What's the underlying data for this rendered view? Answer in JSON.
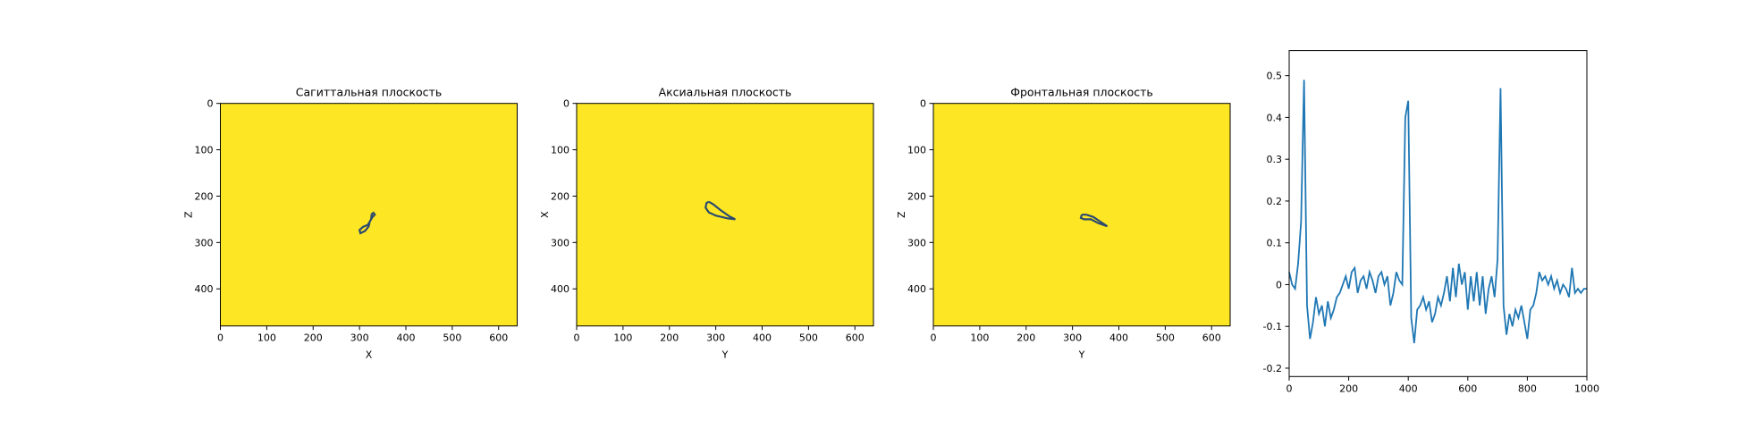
{
  "chart_data": [
    {
      "type": "contour",
      "title": "Сагиттальная плоскость",
      "x_label": "X",
      "y_label": "Z",
      "background": "#fde725",
      "xlim": [
        0,
        640
      ],
      "ylim": [
        480,
        0
      ],
      "xticks": [
        0,
        100,
        200,
        300,
        400,
        500,
        600
      ],
      "yticks": [
        0,
        100,
        200,
        300,
        400
      ],
      "series": [
        {
          "color": "#2c4a6e",
          "x": [
            325,
            330,
            333,
            328,
            322,
            320,
            312,
            302,
            300,
            308,
            318,
            325,
            326,
            325
          ],
          "y": [
            240,
            236,
            240,
            245,
            255,
            265,
            275,
            280,
            273,
            266,
            262,
            250,
            242,
            240
          ]
        }
      ]
    },
    {
      "type": "contour",
      "title": "Аксиальная плоскость",
      "x_label": "Y",
      "y_label": "X",
      "background": "#fde725",
      "xlim": [
        0,
        640
      ],
      "ylim": [
        480,
        0
      ],
      "xticks": [
        0,
        100,
        200,
        300,
        400,
        500,
        600
      ],
      "yticks": [
        0,
        100,
        200,
        300,
        400
      ],
      "series": [
        {
          "color": "#2c4a6e",
          "x": [
            285,
            295,
            310,
            330,
            342,
            325,
            300,
            285,
            278,
            280,
            285
          ],
          "y": [
            212,
            218,
            230,
            244,
            250,
            248,
            242,
            235,
            225,
            215,
            212
          ]
        }
      ]
    },
    {
      "type": "contour",
      "title": "Фронтальная плоскость",
      "x_label": "Y",
      "y_label": "Z",
      "background": "#fde725",
      "xlim": [
        0,
        640
      ],
      "ylim": [
        480,
        0
      ],
      "xticks": [
        0,
        100,
        200,
        300,
        400,
        500,
        600
      ],
      "yticks": [
        0,
        100,
        200,
        300,
        400
      ],
      "series": [
        {
          "color": "#2c4a6e",
          "x": [
            320,
            330,
            345,
            360,
            375,
            355,
            340,
            325,
            318,
            320
          ],
          "y": [
            240,
            240,
            245,
            255,
            265,
            258,
            250,
            250,
            247,
            240
          ]
        }
      ]
    },
    {
      "type": "line",
      "xlim": [
        0,
        1000
      ],
      "ylim": [
        -0.22,
        0.56
      ],
      "xticks": [
        0,
        200,
        400,
        600,
        800,
        1000
      ],
      "yticks": [
        -0.2,
        -0.1,
        0.0,
        0.1,
        0.2,
        0.3,
        0.4,
        0.5
      ],
      "x": [
        0,
        10,
        20,
        30,
        40,
        50,
        60,
        70,
        80,
        90,
        100,
        110,
        120,
        130,
        140,
        150,
        160,
        170,
        180,
        190,
        200,
        210,
        220,
        230,
        240,
        250,
        260,
        270,
        280,
        290,
        300,
        310,
        320,
        330,
        340,
        350,
        360,
        370,
        380,
        390,
        400,
        410,
        420,
        430,
        440,
        450,
        460,
        470,
        480,
        490,
        500,
        510,
        520,
        530,
        540,
        550,
        560,
        570,
        580,
        590,
        600,
        610,
        620,
        630,
        640,
        650,
        660,
        670,
        680,
        690,
        700,
        710,
        720,
        730,
        740,
        750,
        760,
        770,
        780,
        790,
        800,
        810,
        820,
        830,
        840,
        850,
        860,
        870,
        880,
        890,
        900,
        910,
        920,
        930,
        940,
        950,
        960,
        970,
        980,
        990,
        1000
      ],
      "series": [
        {
          "color": "#1f77b4",
          "values": [
            0.03,
            0.0,
            -0.01,
            0.05,
            0.15,
            0.49,
            -0.05,
            -0.13,
            -0.09,
            -0.03,
            -0.07,
            -0.05,
            -0.1,
            -0.04,
            -0.08,
            -0.06,
            -0.03,
            -0.02,
            0.0,
            0.02,
            -0.01,
            0.03,
            0.04,
            -0.02,
            0.01,
            0.02,
            -0.01,
            0.03,
            0.01,
            -0.02,
            0.02,
            0.03,
            0.0,
            0.02,
            -0.05,
            -0.02,
            0.03,
            0.01,
            0.0,
            0.4,
            0.44,
            -0.08,
            -0.14,
            -0.06,
            -0.05,
            -0.03,
            -0.06,
            -0.04,
            -0.09,
            -0.07,
            -0.03,
            -0.05,
            -0.02,
            0.02,
            -0.04,
            0.04,
            -0.03,
            0.05,
            0.0,
            0.03,
            -0.06,
            0.02,
            -0.04,
            0.03,
            -0.05,
            0.02,
            -0.07,
            -0.01,
            0.02,
            -0.03,
            0.06,
            0.47,
            -0.05,
            -0.12,
            -0.07,
            -0.1,
            -0.06,
            -0.08,
            -0.05,
            -0.09,
            -0.13,
            -0.06,
            -0.05,
            -0.02,
            0.03,
            0.01,
            0.02,
            0.0,
            0.02,
            -0.01,
            0.01,
            -0.02,
            0.0,
            -0.01,
            -0.03,
            0.04,
            -0.02,
            -0.01,
            -0.02,
            -0.01,
            -0.01
          ]
        }
      ]
    }
  ]
}
